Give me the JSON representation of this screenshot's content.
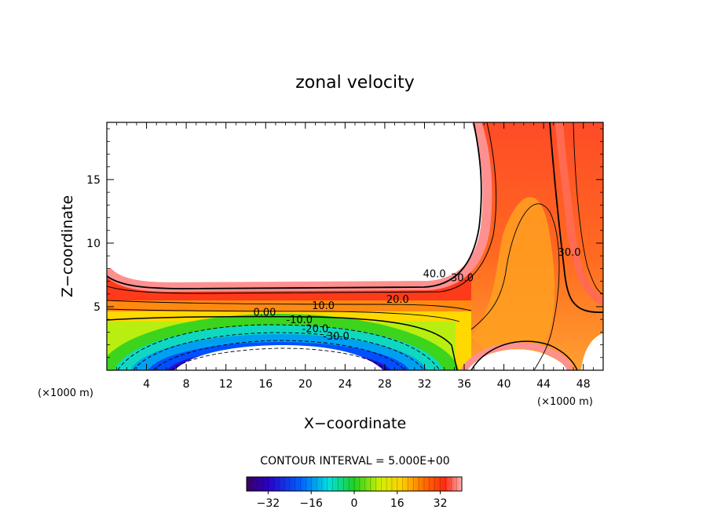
{
  "chart_data": {
    "type": "contour",
    "title": "zonal velocity",
    "xlabel": "X−coordinate",
    "ylabel": "Z−coordinate",
    "x_unit_left": "(×1000 m)",
    "x_unit_right": "(×1000 m)",
    "xlim": [
      0,
      50
    ],
    "ylim": [
      0,
      19.5
    ],
    "x_ticks": [
      4,
      8,
      12,
      16,
      20,
      24,
      28,
      32,
      36,
      40,
      44,
      48
    ],
    "y_ticks": [
      5,
      10,
      15
    ],
    "contour_interval_text": "CONTOUR INTERVAL = 5.000E+00",
    "contour_labels": [
      {
        "text": "40.0",
        "x": 33,
        "z": 7.3
      },
      {
        "text": "30.0",
        "x": 35.8,
        "z": 7.0
      },
      {
        "text": "20.0",
        "x": 29.3,
        "z": 5.3
      },
      {
        "text": "10.0",
        "x": 21.8,
        "z": 4.8
      },
      {
        "text": "0.00",
        "x": 15.9,
        "z": 4.3
      },
      {
        "text": "-10.0",
        "x": 19.4,
        "z": 3.7
      },
      {
        "text": "-20.0",
        "x": 21.0,
        "z": 3.0
      },
      {
        "text": "-30.0",
        "x": 23.1,
        "z": 2.4
      },
      {
        "text": "30.0",
        "x": 46.6,
        "z": 9.0
      }
    ],
    "colorbar": {
      "ticks": [
        -32,
        -16,
        0,
        16,
        32
      ],
      "tick_labels": [
        "−32",
        "−16",
        "0",
        "16",
        "32"
      ],
      "range": [
        -40,
        40
      ],
      "colormap": "rainbow"
    }
  }
}
